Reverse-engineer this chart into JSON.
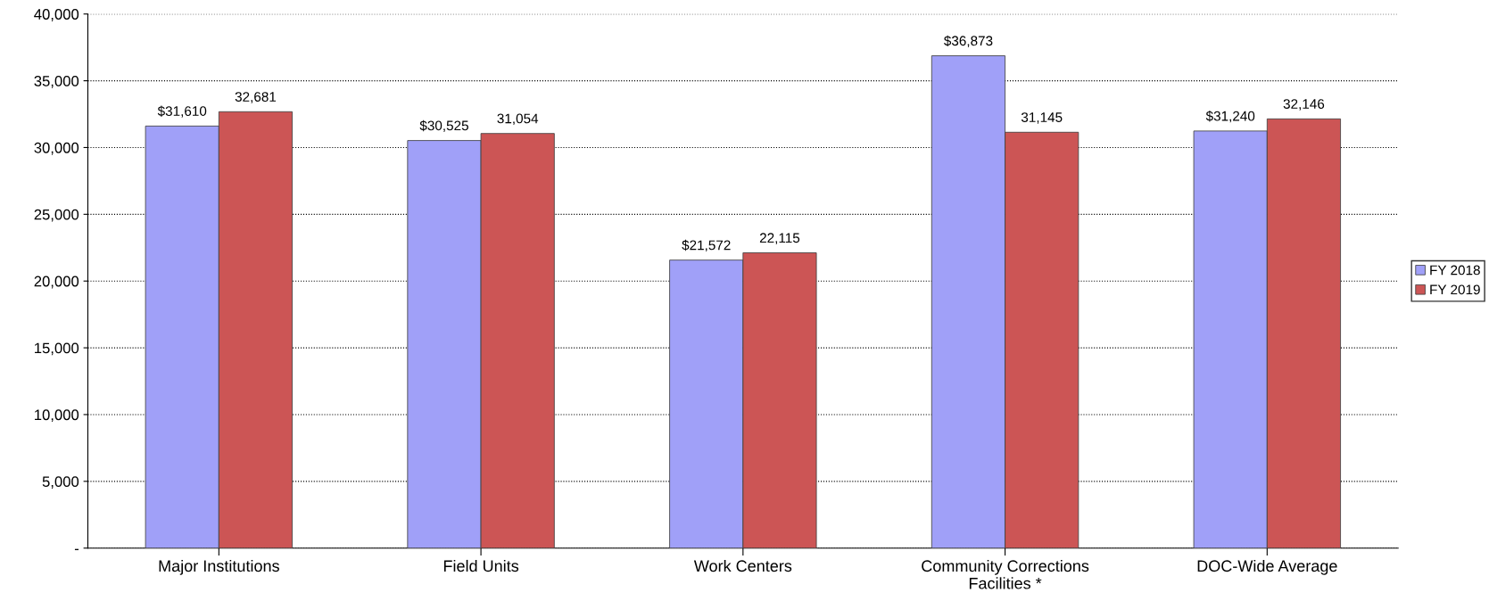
{
  "chart_data": {
    "type": "bar",
    "categories": [
      "Major Institutions",
      "Field Units",
      "Work Centers",
      "Community Corrections\nFacilities *",
      "DOC-Wide Average"
    ],
    "series": [
      {
        "name": "FY 2018",
        "color": "#a0a0f8",
        "values": [
          31610,
          30525,
          21572,
          36873,
          31240
        ],
        "value_labels": [
          "$31,610",
          "$30,525",
          "$21,572",
          "$36,873",
          "$31,240"
        ]
      },
      {
        "name": "FY 2019",
        "color": "#cc5555",
        "values": [
          32681,
          31054,
          22115,
          31145,
          32146
        ],
        "value_labels": [
          "32,681",
          "31,054",
          "22,115",
          "31,145",
          "32,146"
        ]
      }
    ],
    "ylim": [
      0,
      40000
    ],
    "yticks": [
      {
        "value": 0,
        "label": "-"
      },
      {
        "value": 5000,
        "label": "5,000"
      },
      {
        "value": 10000,
        "label": "10,000"
      },
      {
        "value": 15000,
        "label": "15,000"
      },
      {
        "value": 20000,
        "label": "20,000"
      },
      {
        "value": 25000,
        "label": "25,000"
      },
      {
        "value": 30000,
        "label": "30,000"
      },
      {
        "value": 35000,
        "label": "35,000"
      },
      {
        "value": 40000,
        "label": "40,000"
      }
    ],
    "grid": "y",
    "legend": "right"
  }
}
